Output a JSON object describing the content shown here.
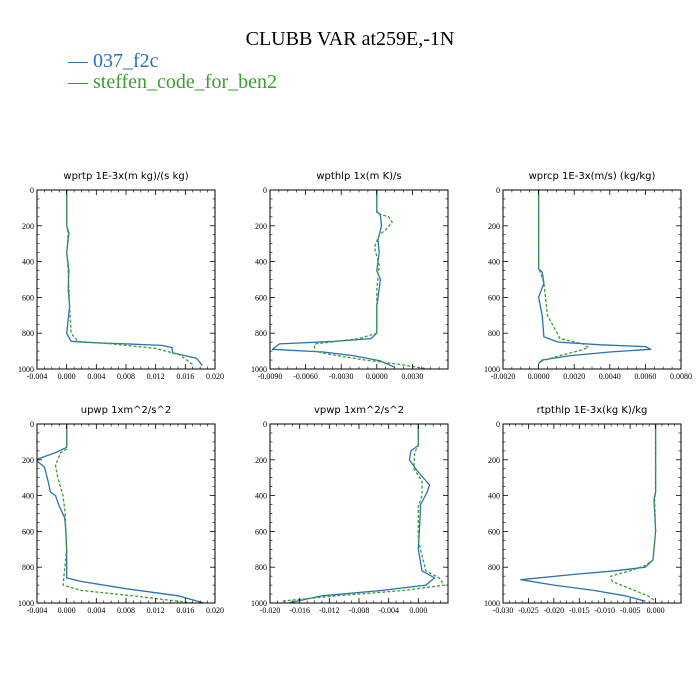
{
  "title": "CLUBB VAR at259E,-1N",
  "legend": [
    {
      "label": "037_f2c",
      "color": "#2b72b0"
    },
    {
      "label": "steffen_code_for_ben2",
      "color": "#3a9e2e"
    }
  ],
  "colors": {
    "series_1": "#2b72b0",
    "series_2": "#3a9e2e"
  },
  "chart_data": [
    {
      "type": "line",
      "title": "wprtp   1E-3x(m kg)/(s kg)",
      "xlim": [
        -0.004,
        0.02
      ],
      "ylim": [
        0,
        1000
      ],
      "y_inverted": true,
      "xticks": [
        -0.004,
        0.0,
        0.004,
        0.008,
        0.012,
        0.016,
        0.02
      ],
      "xtick_labels": [
        "-0.004",
        "0.000",
        "0.004",
        "0.008",
        "0.012",
        "0.016",
        "0.020"
      ],
      "yticks": [
        0,
        200,
        400,
        600,
        800,
        1000
      ],
      "ytick_labels": [
        "0",
        "200",
        "400",
        "600",
        "800",
        "1000"
      ],
      "series": [
        {
          "name": "037_f2c",
          "dashed": false,
          "x": [
            0.0,
            0.0,
            0.0003,
            0.0,
            0.0003,
            0.0002,
            0.0004,
            0.0,
            0.0006,
            0.003,
            0.008,
            0.0128,
            0.0142,
            0.0143,
            0.0175,
            0.0183
          ],
          "y": [
            0,
            200,
            240,
            350,
            450,
            550,
            650,
            800,
            845,
            852,
            860,
            868,
            880,
            910,
            940,
            980
          ]
        },
        {
          "name": "steffen_code_for_ben2",
          "dashed": true,
          "x": [
            0.0,
            0.0,
            0.0002,
            0.0,
            0.0002,
            0.0003,
            0.0004,
            0.0006,
            0.0015,
            0.006,
            0.012,
            0.0152,
            0.017
          ],
          "y": [
            0,
            200,
            240,
            350,
            450,
            550,
            650,
            800,
            845,
            860,
            885,
            920,
            975
          ]
        }
      ]
    },
    {
      "type": "line",
      "title": "wpthlp   1x(m K)/s",
      "xlim": [
        -0.009,
        0.006
      ],
      "ylim": [
        0,
        1000
      ],
      "y_inverted": true,
      "xticks": [
        -0.009,
        -0.006,
        -0.003,
        0.0,
        0.003
      ],
      "xtick_labels": [
        "-0.0090",
        "-0.0060",
        "-0.0030",
        "0.0000",
        "0.0030"
      ],
      "yticks": [
        0,
        200,
        400,
        600,
        800,
        1000
      ],
      "ytick_labels": [
        "0",
        "200",
        "400",
        "600",
        "800",
        "1000"
      ],
      "series": [
        {
          "name": "037_f2c",
          "dashed": false,
          "x": [
            0.0,
            0.0,
            0.0003,
            0.0004,
            0.0001,
            0.0002,
            0.0,
            0.0003,
            0.0,
            0.0,
            -0.0005,
            -0.0035,
            -0.0082,
            -0.0088,
            -0.0045,
            -0.002,
            0.0003,
            0.0015
          ],
          "y": [
            0,
            120,
            140,
            200,
            280,
            350,
            450,
            500,
            650,
            800,
            830,
            845,
            860,
            890,
            905,
            925,
            955,
            990
          ]
        },
        {
          "name": "steffen_code_for_ben2",
          "dashed": true,
          "x": [
            0.0,
            0.0,
            0.001,
            0.0013,
            0.0008,
            0.0002,
            -0.0002,
            0.0002,
            0.0,
            0.0,
            -0.0015,
            -0.0052,
            -0.0053,
            -0.0038,
            -0.001,
            0.002,
            0.0043
          ],
          "y": [
            0,
            130,
            150,
            180,
            220,
            250,
            320,
            420,
            550,
            800,
            830,
            860,
            900,
            920,
            950,
            975,
            1000
          ]
        }
      ]
    },
    {
      "type": "line",
      "title": "wprcp   1E-3x(m/s) (kg/kg)",
      "xlim": [
        -0.002,
        0.008
      ],
      "ylim": [
        0,
        1000
      ],
      "y_inverted": true,
      "xticks": [
        -0.002,
        0.0,
        0.002,
        0.004,
        0.006,
        0.008
      ],
      "xtick_labels": [
        "-0.0020",
        "0.0000",
        "0.0020",
        "0.0040",
        "0.0060",
        "0.0080"
      ],
      "yticks": [
        0,
        200,
        400,
        600,
        800,
        1000
      ],
      "ytick_labels": [
        "0",
        "200",
        "400",
        "600",
        "800",
        "1000"
      ],
      "series": [
        {
          "name": "037_f2c",
          "dashed": false,
          "x": [
            0.0,
            0.0,
            0.0002,
            0.0003,
            0.0,
            0.0002,
            0.0003,
            0.0011,
            0.0035,
            0.006,
            0.0063,
            0.004,
            0.0018,
            0.0002,
            0.0
          ],
          "y": [
            0,
            440,
            460,
            520,
            600,
            700,
            820,
            850,
            865,
            875,
            890,
            905,
            925,
            950,
            970
          ]
        },
        {
          "name": "steffen_code_for_ben2",
          "dashed": true,
          "x": [
            0.0,
            0.0,
            0.0001,
            0.0003,
            0.0005,
            0.0012,
            0.0025,
            0.0028,
            0.0022,
            0.001,
            0.0002,
            0.0
          ],
          "y": [
            0,
            440,
            460,
            520,
            700,
            830,
            860,
            880,
            900,
            930,
            955,
            970
          ]
        }
      ]
    },
    {
      "type": "line",
      "title": "upwp   1xm^2/s^2",
      "xlim": [
        -0.004,
        0.02
      ],
      "ylim": [
        0,
        1000
      ],
      "y_inverted": true,
      "xticks": [
        -0.004,
        0.0,
        0.004,
        0.008,
        0.012,
        0.016,
        0.02
      ],
      "xtick_labels": [
        "-0.004",
        "0.000",
        "0.004",
        "0.008",
        "0.012",
        "0.016",
        "0.020"
      ],
      "yticks": [
        0,
        200,
        400,
        600,
        800,
        1000
      ],
      "ytick_labels": [
        "0",
        "200",
        "400",
        "600",
        "800",
        "1000"
      ],
      "series": [
        {
          "name": "037_f2c",
          "dashed": false,
          "x": [
            0.0,
            0.0,
            -0.0015,
            -0.0042,
            -0.003,
            -0.0025,
            -0.0022,
            -0.0015,
            -0.001,
            -0.0003,
            -0.0002,
            0.0,
            0.0,
            0.002,
            0.008,
            0.015,
            0.0185
          ],
          "y": [
            0,
            130,
            160,
            200,
            240,
            320,
            380,
            400,
            460,
            520,
            550,
            700,
            860,
            880,
            920,
            960,
            1000
          ]
        },
        {
          "name": "steffen_code_for_ben2",
          "dashed": true,
          "x": [
            0.0,
            0.0,
            -0.0008,
            -0.0015,
            -0.0012,
            -0.0005,
            -0.0002,
            0.0,
            -0.0005,
            0.002,
            0.009,
            0.017
          ],
          "y": [
            0,
            140,
            160,
            230,
            300,
            400,
            500,
            700,
            900,
            930,
            960,
            1000
          ]
        }
      ]
    },
    {
      "type": "line",
      "title": "vpwp   1xm^2/s^2",
      "xlim": [
        -0.02,
        0.004
      ],
      "ylim": [
        0,
        1000
      ],
      "y_inverted": true,
      "xticks": [
        -0.02,
        -0.016,
        -0.012,
        -0.008,
        -0.004,
        0.0
      ],
      "xtick_labels": [
        "-0.020",
        "-0.016",
        "-0.012",
        "-0.008",
        "-0.004",
        "0.000"
      ],
      "yticks": [
        0,
        200,
        400,
        600,
        800,
        1000
      ],
      "ytick_labels": [
        "0",
        "200",
        "400",
        "600",
        "800",
        "1000"
      ],
      "series": [
        {
          "name": "037_f2c",
          "dashed": false,
          "x": [
            0.0,
            0.0,
            -0.001,
            -0.0012,
            -0.0002,
            0.0015,
            0.0012,
            0.0003,
            0.0002,
            0.0,
            0.0005,
            0.0022,
            0.001,
            -0.005,
            -0.013,
            -0.0175
          ],
          "y": [
            0,
            120,
            150,
            200,
            260,
            340,
            380,
            450,
            550,
            700,
            820,
            860,
            900,
            930,
            960,
            1000
          ]
        },
        {
          "name": "steffen_code_for_ben2",
          "dashed": true,
          "x": [
            0.0,
            0.0,
            -0.0005,
            -0.0006,
            0.0005,
            0.0005,
            0.0,
            0.0,
            0.001,
            0.0028,
            0.0035,
            -0.002,
            -0.011,
            -0.0185
          ],
          "y": [
            0,
            120,
            160,
            250,
            320,
            400,
            460,
            650,
            820,
            860,
            900,
            930,
            960,
            990
          ]
        }
      ]
    },
    {
      "type": "line",
      "title": "rtpthlp   1E-3x(kg K)/kg",
      "xlim": [
        -0.03,
        0.005
      ],
      "ylim": [
        0,
        1000
      ],
      "y_inverted": true,
      "xticks": [
        -0.03,
        -0.025,
        -0.02,
        -0.015,
        -0.01,
        -0.005,
        0.0
      ],
      "xtick_labels": [
        "-0.030",
        "-0.025",
        "-0.020",
        "-0.015",
        "-0.010",
        "-0.005",
        "0.000"
      ],
      "yticks": [
        0,
        200,
        400,
        600,
        800,
        1000
      ],
      "ytick_labels": [
        "0",
        "200",
        "400",
        "600",
        "800",
        "1000"
      ],
      "series": [
        {
          "name": "037_f2c",
          "dashed": false,
          "x": [
            0.0,
            0.0,
            -0.0003,
            0.0,
            -0.0005,
            -0.002,
            -0.008,
            -0.016,
            -0.0265,
            -0.02,
            -0.012,
            -0.006,
            -0.002
          ],
          "y": [
            0,
            380,
            420,
            600,
            760,
            800,
            820,
            840,
            870,
            900,
            930,
            960,
            990
          ]
        },
        {
          "name": "steffen_code_for_ben2",
          "dashed": true,
          "x": [
            0.0,
            0.0,
            -0.0002,
            0.0,
            -0.0005,
            -0.002,
            -0.005,
            -0.0088,
            -0.0085,
            -0.005,
            -0.0015,
            0.0
          ],
          "y": [
            0,
            380,
            420,
            600,
            760,
            790,
            820,
            850,
            880,
            920,
            960,
            990
          ]
        }
      ]
    }
  ]
}
